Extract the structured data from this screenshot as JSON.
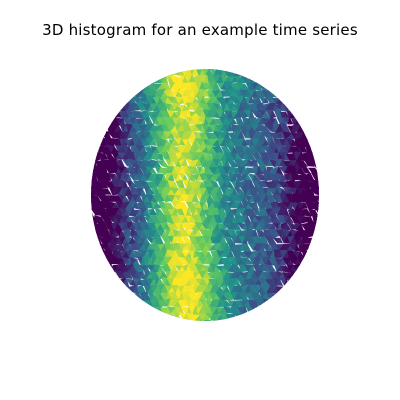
{
  "chart_data": {
    "type": "heatmap",
    "title": "3D histogram for an example time series",
    "projection": "orthographic sphere (triangulated surface)",
    "colormap": "viridis",
    "colormap_stops": [
      "#440154",
      "#3b528b",
      "#21918c",
      "#5ec962",
      "#fde725"
    ],
    "axes_visible": false,
    "grid": false,
    "legend": "none",
    "density_description": "Highest density in a vertical band left of center (yellow), medium density in upper and lower regions (teal-green), lowest density at the left and right edges (dark purple)"
  }
}
